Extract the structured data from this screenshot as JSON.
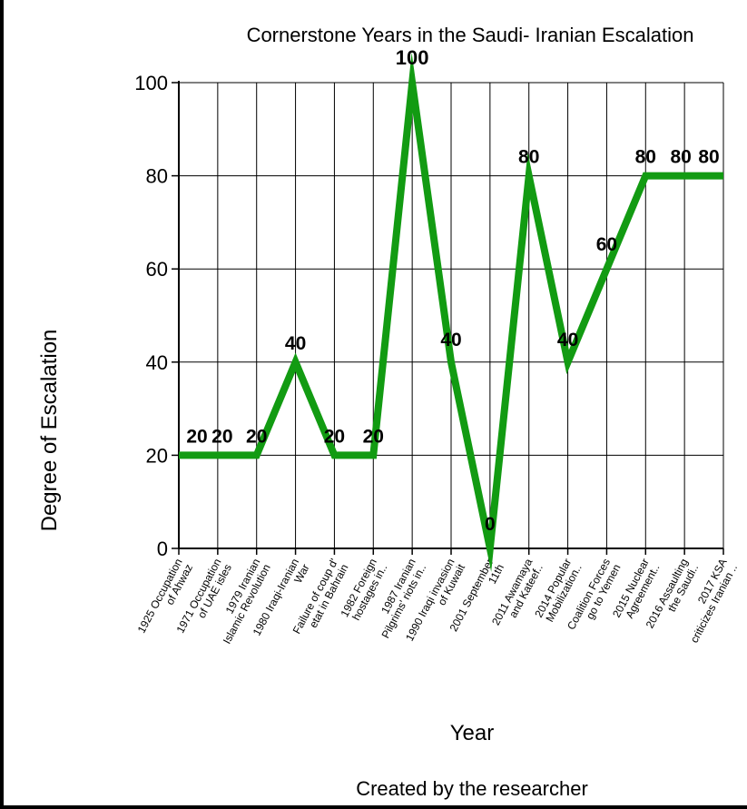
{
  "chart_data": {
    "type": "line",
    "title": "Cornerstone Years in the Saudi- Iranian Escalation",
    "xlabel": "Year",
    "ylabel": "Degree of Escalation",
    "caption": "Created by the researcher",
    "categories": [
      "1925 Occupation of Ahwaz",
      "1971 Occupation of UAE isles",
      "1979 Iranian Islamic Revolution",
      "1980 Iraqi-Iranian War",
      "Failure of coup d' etat in Bahrain",
      "1982 Foreign hostages in..",
      "1987 Iranian Pilgrims' riots in..",
      "1990 Iraqi invasion of Kuwait",
      "2001 September 11th",
      "2011 Awamaya and Kateef..",
      "2014 Popular Mobilization..",
      "Coalition Forces go to Yemen",
      "2015 Nuclear Agreement..",
      "2016 Assaulting the Saudi..",
      "2017 KSA criticizes Iranian .."
    ],
    "category_lines": [
      [
        "1925 Occupation",
        "of Ahwaz"
      ],
      [
        "1971 Occupation",
        "of UAE isles"
      ],
      [
        "1979 Iranian",
        "Islamic Revolution"
      ],
      [
        "1980 Iraqi-Iranian",
        "War"
      ],
      [
        "Failure of coup d'",
        "etat in Bahrain"
      ],
      [
        "1982 Foreign",
        "hostages in.."
      ],
      [
        "1987 Iranian",
        "Pilgrims' riots in.."
      ],
      [
        "1990 Iraqi invasion",
        "of Kuwait"
      ],
      [
        "2001 September",
        "11th"
      ],
      [
        "2011 Awamaya",
        "and Kateef.."
      ],
      [
        "2014 Popular",
        "Mobilization.."
      ],
      [
        "Coalition Forces",
        "go to Yemen"
      ],
      [
        "2015 Nuclear",
        "Agreement.."
      ],
      [
        "2016 Assaulting",
        "the Saudi.."
      ],
      [
        "2017 KSA",
        "criticizes Iranian .."
      ]
    ],
    "series": [
      {
        "values": [
          20,
          20,
          20,
          40,
          20,
          20,
          100,
          40,
          0,
          80,
          40,
          60,
          80,
          80,
          80
        ],
        "color": "#129b12"
      }
    ],
    "ylim": [
      0,
      100
    ],
    "yticks": [
      0,
      20,
      40,
      60,
      80,
      100
    ],
    "grid": true,
    "legend": "none"
  }
}
